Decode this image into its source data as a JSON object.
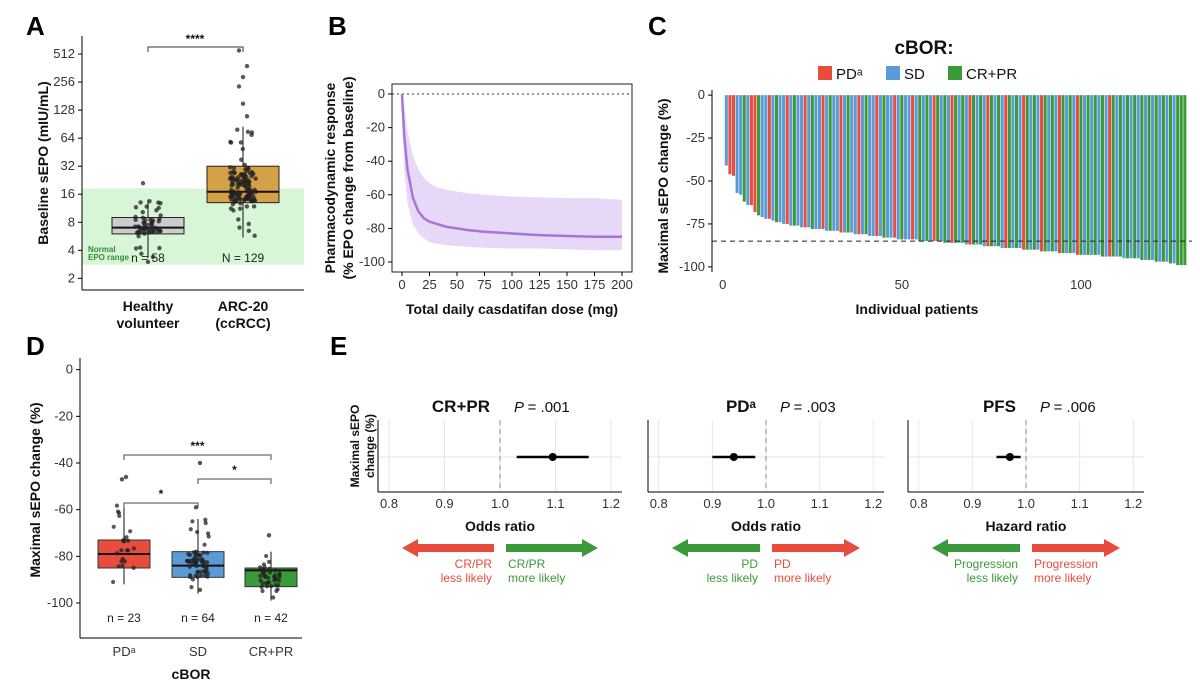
{
  "chart_data": [
    {
      "panel": "A",
      "type": "box",
      "ylabel": "Baseline sEPO (mIU/mL)",
      "yscale": "log2",
      "yticks": [
        "2",
        "4",
        "8",
        "16",
        "32",
        "64",
        "128",
        "256",
        "512"
      ],
      "categories": [
        "Healthy volunteer",
        "ARC-20 (ccRCC)"
      ],
      "category_lines": [
        [
          "Healthy",
          "volunteer"
        ],
        [
          "ARC-20",
          "(ccRCC)"
        ]
      ],
      "boxes": [
        {
          "name": "Healthy volunteer",
          "color": "#cccccc",
          "whisker_low": 3.3,
          "q1": 6.0,
          "median": 7.0,
          "q3": 9.0,
          "whisker_high": 14,
          "n_label": "n = 58",
          "n": 58
        },
        {
          "name": "ARC-20 (ccRCC)",
          "color": "#d4a048",
          "whisker_low": 5.5,
          "q1": 13,
          "median": 17,
          "q3": 32,
          "whisker_high": 85,
          "n_label": "N = 129",
          "n": 129
        }
      ],
      "normal_range": {
        "low": 2.8,
        "high": 18.5,
        "label_lines": [
          "Normal",
          "EPO range"
        ],
        "color": "#d8f5d8"
      },
      "significance": "****"
    },
    {
      "panel": "B",
      "type": "line",
      "xlabel": "Total daily casdatifan dose (mg)",
      "ylabel_lines": [
        "Pharmacodynamic response",
        "(% EPO change from baseline)"
      ],
      "xlim": [
        0,
        200
      ],
      "ylim": [
        -100,
        0
      ],
      "xticks": [
        "0",
        "25",
        "50",
        "75",
        "100",
        "125",
        "150",
        "175",
        "200"
      ],
      "yticks": [
        "-100",
        "-80",
        "-60",
        "-40",
        "-20",
        "0"
      ],
      "x": [
        0,
        2,
        5,
        10,
        15,
        20,
        25,
        30,
        40,
        50,
        60,
        75,
        100,
        125,
        150,
        175,
        200
      ],
      "y": [
        0,
        -25,
        -45,
        -62,
        -70,
        -74,
        -76,
        -77,
        -79,
        -80,
        -81,
        -82,
        -83,
        -84,
        -84.5,
        -85,
        -85
      ],
      "ci_low": [
        0,
        -45,
        -65,
        -78,
        -83,
        -86,
        -88,
        -89,
        -90,
        -90.5,
        -91,
        -91.5,
        -92,
        -92,
        -92.5,
        -93,
        -93
      ],
      "ci_high": [
        0,
        -8,
        -22,
        -37,
        -45,
        -50,
        -53,
        -55,
        -57,
        -58,
        -59,
        -60,
        -61,
        -61.5,
        -62,
        -62,
        -63
      ],
      "color": "#a874d8",
      "band_color": "#e8d8f8"
    },
    {
      "panel": "C",
      "type": "bar",
      "title": "cBOR:",
      "legend": [
        "PDᵃ",
        "SD",
        "CR+PR"
      ],
      "colors": {
        "PDᵃ": "#e74c3c",
        "SD": "#5b9bd5",
        "CR+PR": "#3a9a3a"
      },
      "xlabel": "Individual patients",
      "ylabel": "Maximal sEPO change (%)",
      "xticks": [
        "0",
        "50",
        "100"
      ],
      "yticks": [
        "-100",
        "-75",
        "-50",
        "-25",
        "0"
      ],
      "xlim": [
        -3,
        131
      ],
      "ylim": [
        -103,
        3
      ],
      "reference_line": -85,
      "n_patients": 129,
      "bars": [
        {
          "p": 1,
          "v": -41,
          "g": "SD"
        },
        {
          "p": 2,
          "v": -46,
          "g": "PDᵃ"
        },
        {
          "p": 3,
          "v": -47,
          "g": "PDᵃ"
        },
        {
          "p": 4,
          "v": -57,
          "g": "SD"
        },
        {
          "p": 5,
          "v": -58,
          "g": "SD"
        },
        {
          "p": 6,
          "v": -62,
          "g": "CR+PR"
        },
        {
          "p": 7,
          "v": -64,
          "g": "SD"
        },
        {
          "p": 8,
          "v": -64,
          "g": "PDᵃ"
        },
        {
          "p": 9,
          "v": -68,
          "g": "PDᵃ"
        },
        {
          "p": 10,
          "v": -70,
          "g": "CR+PR"
        },
        {
          "p": 11,
          "v": -71,
          "g": "SD"
        },
        {
          "p": 12,
          "v": -72,
          "g": "SD"
        },
        {
          "p": 13,
          "v": -72,
          "g": "PDᵃ"
        },
        {
          "p": 14,
          "v": -73,
          "g": "SD"
        },
        {
          "p": 15,
          "v": -74,
          "g": "CR+PR"
        },
        {
          "p": 16,
          "v": -74,
          "g": "SD"
        },
        {
          "p": 17,
          "v": -75,
          "g": "SD"
        },
        {
          "p": 18,
          "v": -75,
          "g": "PDᵃ"
        },
        {
          "p": 19,
          "v": -76,
          "g": "SD"
        },
        {
          "p": 20,
          "v": -76,
          "g": "CR+PR"
        },
        {
          "p": 21,
          "v": -76,
          "g": "SD"
        },
        {
          "p": 22,
          "v": -77,
          "g": "SD"
        },
        {
          "p": 23,
          "v": -77,
          "g": "PDᵃ"
        },
        {
          "p": 24,
          "v": -77,
          "g": "SD"
        },
        {
          "p": 25,
          "v": -78,
          "g": "CR+PR"
        },
        {
          "p": 26,
          "v": -78,
          "g": "SD"
        },
        {
          "p": 27,
          "v": -78,
          "g": "SD"
        },
        {
          "p": 28,
          "v": -78,
          "g": "PDᵃ"
        },
        {
          "p": 29,
          "v": -79,
          "g": "SD"
        },
        {
          "p": 30,
          "v": -79,
          "g": "CR+PR"
        },
        {
          "p": 31,
          "v": -79,
          "g": "SD"
        },
        {
          "p": 32,
          "v": -79,
          "g": "SD"
        },
        {
          "p": 33,
          "v": -80,
          "g": "PDᵃ"
        },
        {
          "p": 34,
          "v": -80,
          "g": "SD"
        },
        {
          "p": 35,
          "v": -80,
          "g": "CR+PR"
        },
        {
          "p": 36,
          "v": -80,
          "g": "SD"
        },
        {
          "p": 37,
          "v": -81,
          "g": "SD"
        },
        {
          "p": 38,
          "v": -81,
          "g": "PDᵃ"
        },
        {
          "p": 39,
          "v": -81,
          "g": "SD"
        },
        {
          "p": 40,
          "v": -81,
          "g": "CR+PR"
        },
        {
          "p": 41,
          "v": -82,
          "g": "SD"
        },
        {
          "p": 42,
          "v": -82,
          "g": "SD"
        },
        {
          "p": 43,
          "v": -82,
          "g": "PDᵃ"
        },
        {
          "p": 44,
          "v": -82,
          "g": "SD"
        },
        {
          "p": 45,
          "v": -83,
          "g": "CR+PR"
        },
        {
          "p": 46,
          "v": -83,
          "g": "SD"
        },
        {
          "p": 47,
          "v": -83,
          "g": "SD"
        },
        {
          "p": 48,
          "v": -83,
          "g": "PDᵃ"
        },
        {
          "p": 49,
          "v": -84,
          "g": "SD"
        },
        {
          "p": 50,
          "v": -84,
          "g": "CR+PR"
        },
        {
          "p": 51,
          "v": -84,
          "g": "SD"
        },
        {
          "p": 52,
          "v": -84,
          "g": "SD"
        },
        {
          "p": 53,
          "v": -84,
          "g": "PDᵃ"
        },
        {
          "p": 54,
          "v": -84,
          "g": "SD"
        },
        {
          "p": 55,
          "v": -85,
          "g": "CR+PR"
        },
        {
          "p": 56,
          "v": -85,
          "g": "SD"
        },
        {
          "p": 57,
          "v": -85,
          "g": "CR+PR"
        },
        {
          "p": 58,
          "v": -85,
          "g": "SD"
        },
        {
          "p": 59,
          "v": -85,
          "g": "PDᵃ"
        },
        {
          "p": 60,
          "v": -85,
          "g": "CR+PR"
        },
        {
          "p": 61,
          "v": -85,
          "g": "SD"
        },
        {
          "p": 62,
          "v": -86,
          "g": "CR+PR"
        },
        {
          "p": 63,
          "v": -86,
          "g": "SD"
        },
        {
          "p": 64,
          "v": -86,
          "g": "PDᵃ"
        },
        {
          "p": 65,
          "v": -86,
          "g": "CR+PR"
        },
        {
          "p": 66,
          "v": -86,
          "g": "SD"
        },
        {
          "p": 67,
          "v": -86,
          "g": "CR+PR"
        },
        {
          "p": 68,
          "v": -87,
          "g": "SD"
        },
        {
          "p": 69,
          "v": -87,
          "g": "PDᵃ"
        },
        {
          "p": 70,
          "v": -87,
          "g": "CR+PR"
        },
        {
          "p": 71,
          "v": -87,
          "g": "SD"
        },
        {
          "p": 72,
          "v": -87,
          "g": "CR+PR"
        },
        {
          "p": 73,
          "v": -88,
          "g": "SD"
        },
        {
          "p": 74,
          "v": -88,
          "g": "PDᵃ"
        },
        {
          "p": 75,
          "v": -88,
          "g": "CR+PR"
        },
        {
          "p": 76,
          "v": -88,
          "g": "SD"
        },
        {
          "p": 77,
          "v": -88,
          "g": "CR+PR"
        },
        {
          "p": 78,
          "v": -89,
          "g": "SD"
        },
        {
          "p": 79,
          "v": -89,
          "g": "PDᵃ"
        },
        {
          "p": 80,
          "v": -89,
          "g": "CR+PR"
        },
        {
          "p": 81,
          "v": -89,
          "g": "SD"
        },
        {
          "p": 82,
          "v": -89,
          "g": "CR+PR"
        },
        {
          "p": 83,
          "v": -89,
          "g": "SD"
        },
        {
          "p": 84,
          "v": -90,
          "g": "PDᵃ"
        },
        {
          "p": 85,
          "v": -90,
          "g": "CR+PR"
        },
        {
          "p": 86,
          "v": -90,
          "g": "SD"
        },
        {
          "p": 87,
          "v": -90,
          "g": "CR+PR"
        },
        {
          "p": 88,
          "v": -90,
          "g": "SD"
        },
        {
          "p": 89,
          "v": -91,
          "g": "PDᵃ"
        },
        {
          "p": 90,
          "v": -91,
          "g": "CR+PR"
        },
        {
          "p": 91,
          "v": -91,
          "g": "SD"
        },
        {
          "p": 92,
          "v": -91,
          "g": "CR+PR"
        },
        {
          "p": 93,
          "v": -91,
          "g": "SD"
        },
        {
          "p": 94,
          "v": -92,
          "g": "PDᵃ"
        },
        {
          "p": 95,
          "v": -92,
          "g": "CR+PR"
        },
        {
          "p": 96,
          "v": -92,
          "g": "SD"
        },
        {
          "p": 97,
          "v": -92,
          "g": "CR+PR"
        },
        {
          "p": 98,
          "v": -92,
          "g": "SD"
        },
        {
          "p": 99,
          "v": -93,
          "g": "PDᵃ"
        },
        {
          "p": 100,
          "v": -93,
          "g": "CR+PR"
        },
        {
          "p": 101,
          "v": -93,
          "g": "SD"
        },
        {
          "p": 102,
          "v": -93,
          "g": "CR+PR"
        },
        {
          "p": 103,
          "v": -93,
          "g": "SD"
        },
        {
          "p": 104,
          "v": -93,
          "g": "CR+PR"
        },
        {
          "p": 105,
          "v": -93,
          "g": "SD"
        },
        {
          "p": 106,
          "v": -94,
          "g": "CR+PR"
        },
        {
          "p": 107,
          "v": -94,
          "g": "SD"
        },
        {
          "p": 108,
          "v": -94,
          "g": "PDᵃ"
        },
        {
          "p": 109,
          "v": -94,
          "g": "CR+PR"
        },
        {
          "p": 110,
          "v": -94,
          "g": "SD"
        },
        {
          "p": 111,
          "v": -94,
          "g": "CR+PR"
        },
        {
          "p": 112,
          "v": -95,
          "g": "SD"
        },
        {
          "p": 113,
          "v": -95,
          "g": "CR+PR"
        },
        {
          "p": 114,
          "v": -95,
          "g": "SD"
        },
        {
          "p": 115,
          "v": -95,
          "g": "CR+PR"
        },
        {
          "p": 116,
          "v": -95,
          "g": "SD"
        },
        {
          "p": 117,
          "v": -96,
          "g": "CR+PR"
        },
        {
          "p": 118,
          "v": -96,
          "g": "SD"
        },
        {
          "p": 119,
          "v": -96,
          "g": "CR+PR"
        },
        {
          "p": 120,
          "v": -96,
          "g": "SD"
        },
        {
          "p": 121,
          "v": -97,
          "g": "CR+PR"
        },
        {
          "p": 122,
          "v": -97,
          "g": "SD"
        },
        {
          "p": 123,
          "v": -97,
          "g": "CR+PR"
        },
        {
          "p": 124,
          "v": -97,
          "g": "SD"
        },
        {
          "p": 125,
          "v": -98,
          "g": "CR+PR"
        },
        {
          "p": 126,
          "v": -98,
          "g": "SD"
        },
        {
          "p": 127,
          "v": -99,
          "g": "CR+PR"
        },
        {
          "p": 128,
          "v": -99,
          "g": "CR+PR"
        },
        {
          "p": 129,
          "v": -99,
          "g": "CR+PR"
        }
      ]
    },
    {
      "panel": "D",
      "type": "box",
      "xlabel": "cBOR",
      "ylabel": "Maximal sEPO change (%)",
      "ylim": [
        -115,
        5
      ],
      "yticks": [
        "-100",
        "-80",
        "-60",
        "-40",
        "-20",
        "0"
      ],
      "categories": [
        "PDᵃ",
        "SD",
        "CR+PR"
      ],
      "boxes": [
        {
          "name": "PDᵃ",
          "color": "#e74c3c",
          "whisker_low": -92,
          "q1": -85,
          "median": -79,
          "q3": -73,
          "whisker_high": -58,
          "outliers": [
            -47,
            -46
          ],
          "n_label": "n = 23",
          "n": 23
        },
        {
          "name": "SD",
          "color": "#5b9bd5",
          "whisker_low": -96,
          "q1": -89,
          "median": -84,
          "q3": -78,
          "whisker_high": -64,
          "outliers": [
            -59,
            -40
          ],
          "n_label": "n = 64",
          "n": 64
        },
        {
          "name": "CR+PR",
          "color": "#3a9a3a",
          "whisker_low": -99,
          "q1": -93,
          "median": -86,
          "q3": -85,
          "whisker_high": -78,
          "outliers": [
            -71
          ],
          "n_label": "n = 42",
          "n": 42
        }
      ],
      "comparisons": [
        {
          "groups": [
            "PDᵃ",
            "SD"
          ],
          "label": "*"
        },
        {
          "groups": [
            "SD",
            "CR+PR"
          ],
          "label": "*"
        },
        {
          "groups": [
            "PDᵃ",
            "CR+PR"
          ],
          "label": "***"
        }
      ]
    },
    {
      "panel": "E",
      "type": "forest",
      "ylabel_lines": [
        "Maximal sEPO",
        "change (%)"
      ],
      "xlim": [
        0.78,
        1.22
      ],
      "xticks": [
        "0.8",
        "0.9",
        "1.0",
        "1.1",
        "1.2"
      ],
      "reference": 1.0,
      "plots": [
        {
          "title": "CR+PR",
          "p_label": "P",
          "p_value": "= .001",
          "estimate": 1.095,
          "ci": [
            1.03,
            1.16
          ],
          "xlabel": "Odds ratio",
          "left_arrow": {
            "color": "#e74c3c",
            "lines": [
              "CR/PR",
              "less likely"
            ]
          },
          "right_arrow": {
            "color": "#3a9a3a",
            "lines": [
              "CR/PR",
              "more likely"
            ]
          }
        },
        {
          "title": "PDᵃ",
          "p_label": "P",
          "p_value": "= .003",
          "estimate": 0.94,
          "ci": [
            0.9,
            0.98
          ],
          "xlabel": "Odds ratio",
          "left_arrow": {
            "color": "#3a9a3a",
            "lines": [
              "PD",
              "less likely"
            ]
          },
          "right_arrow": {
            "color": "#e74c3c",
            "lines": [
              "PD",
              "more likely"
            ]
          }
        },
        {
          "title": "PFS",
          "p_label": "P",
          "p_value": "= .006",
          "estimate": 0.97,
          "ci": [
            0.945,
            0.99
          ],
          "xlabel": "Hazard ratio",
          "left_arrow": {
            "color": "#3a9a3a",
            "lines": [
              "Progression",
              "less likely"
            ]
          },
          "right_arrow": {
            "color": "#e74c3c",
            "lines": [
              "Progression",
              "more likely"
            ]
          }
        }
      ]
    }
  ],
  "panel_labels": [
    "A",
    "B",
    "C",
    "D",
    "E"
  ]
}
